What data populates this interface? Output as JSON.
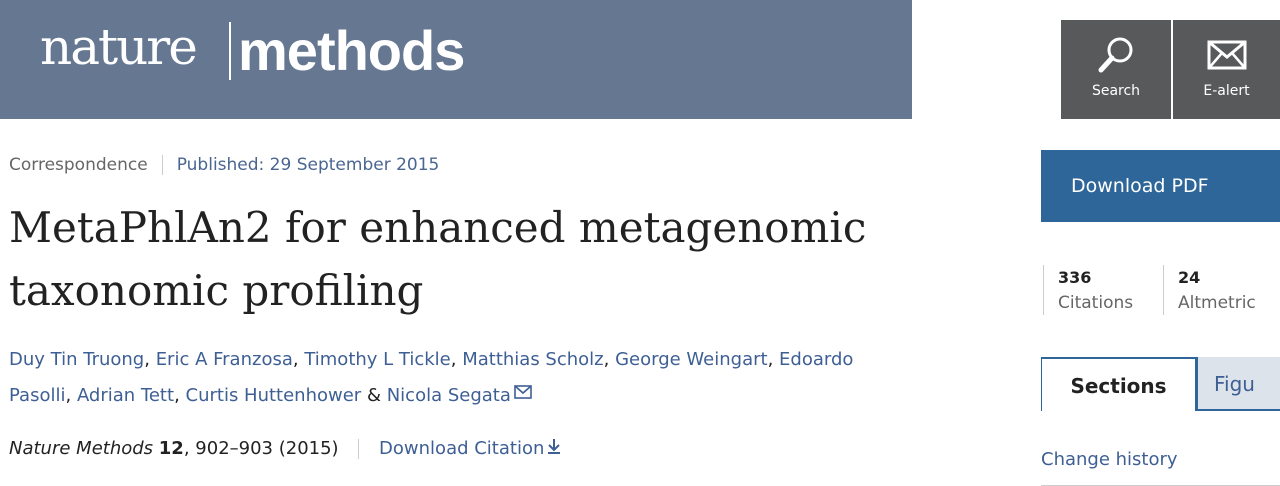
{
  "header": {
    "logo_left": "nature",
    "logo_right": "methods"
  },
  "toolbar": {
    "search": "Search",
    "ealert": "E-alert"
  },
  "article": {
    "type": "Correspondence",
    "published": "Published: 29 September 2015",
    "title": "MetaPhlAn2 for enhanced metagenomic taxonomic profiling",
    "authors": [
      {
        "name": "Duy Tin Truong",
        "sep": ", "
      },
      {
        "name": "Eric A Franzosa",
        "sep": ", "
      },
      {
        "name": "Timothy L Tickle",
        "sep": ", "
      },
      {
        "name": "Matthias Scholz",
        "sep": ", "
      },
      {
        "name": "George Weingart",
        "sep": ", "
      },
      {
        "name": "Edoardo Pasolli",
        "sep": ", "
      },
      {
        "name": "Adrian Tett",
        "sep": ", "
      },
      {
        "name": "Curtis Huttenhower",
        "sep": " & "
      },
      {
        "name": "Nicola Segata"
      }
    ],
    "citation": {
      "journal": "Nature Methods",
      "volume": "12",
      "rest": ", 902–903 (2015)",
      "download": "Download Citation"
    }
  },
  "sidebar": {
    "download_pdf": "Download PDF",
    "metrics": [
      {
        "value": "336",
        "label": "Citations"
      },
      {
        "value": "24",
        "label": "Altmetric"
      }
    ],
    "tabs": [
      "Sections",
      "Figu"
    ],
    "change_history": "Change history"
  }
}
